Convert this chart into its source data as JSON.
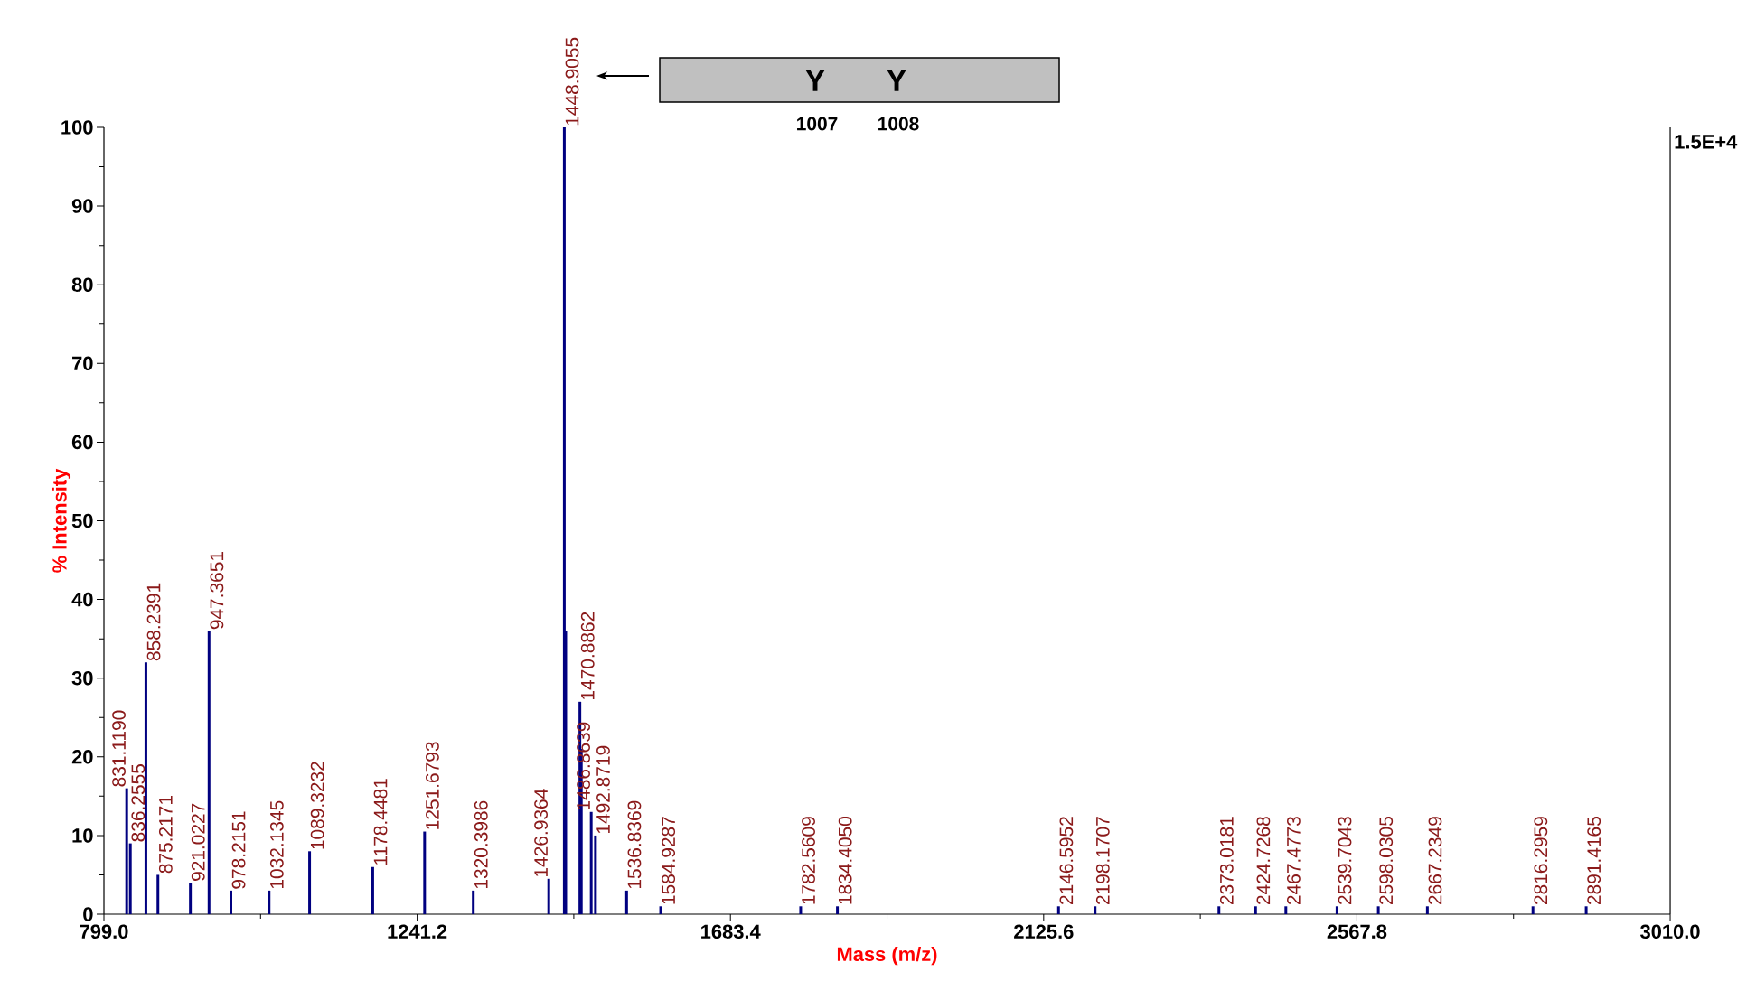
{
  "chart_data": {
    "type": "bar",
    "xlabel": "Mass (m/z)",
    "ylabel": "% Intensity",
    "x": [
      831.119,
      836.2555,
      858.2391,
      875.2171,
      921.0227,
      947.3651,
      978.2151,
      1032.1345,
      1089.3232,
      1178.4481,
      1251.6793,
      1320.3986,
      1426.9364,
      1448.9055,
      1450.9,
      1470.8862,
      1472.9,
      1486.8639,
      1492.8719,
      1536.8369,
      1584.9287,
      1782.5609,
      1834.405,
      2146.5952,
      2198.1707,
      2373.0181,
      2424.7268,
      2467.4773,
      2539.7043,
      2598.0305,
      2667.2349,
      2816.2959,
      2891.4165
    ],
    "values": [
      16,
      9,
      32,
      5,
      4,
      36,
      3,
      3,
      8,
      6,
      10.5,
      3,
      4.5,
      100,
      36,
      27,
      21,
      13,
      10,
      3,
      1,
      1,
      1,
      1,
      1,
      1,
      1,
      1,
      1,
      1,
      1,
      1,
      1
    ],
    "color": "#000080",
    "xlim": [
      799.0,
      3010.0
    ],
    "xticks": [
      {
        "value": 799.0,
        "label": "799.0"
      },
      1241.2,
      1683.4,
      2125.6,
      2567.8,
      {
        "value": 3010.0,
        "label": "3010.0"
      }
    ],
    "ylim": [
      0,
      100
    ],
    "yticks": [
      0,
      10,
      20,
      30,
      40,
      50,
      60,
      70,
      80,
      90,
      100
    ],
    "annotations": [
      {
        "text": "831.1190",
        "x": 831.119,
        "y": 16
      },
      {
        "text": "836.2555",
        "x": 836.2555,
        "y": 9
      },
      {
        "text": "858.2391",
        "x": 858.2391,
        "y": 32
      },
      {
        "text": "875.2171",
        "x": 875.2171,
        "y": 5
      },
      {
        "text": "921.0227",
        "x": 921.0227,
        "y": 4
      },
      {
        "text": "947.3651",
        "x": 947.3651,
        "y": 36
      },
      {
        "text": "978.2151",
        "x": 978.2151,
        "y": 3
      },
      {
        "text": "1032.1345",
        "x": 1032.1345,
        "y": 3
      },
      {
        "text": "1089.3232",
        "x": 1089.3232,
        "y": 8
      },
      {
        "text": "1178.4481",
        "x": 1178.4481,
        "y": 6
      },
      {
        "text": "1251.6793",
        "x": 1251.6793,
        "y": 10.5
      },
      {
        "text": "1320.3986",
        "x": 1320.3986,
        "y": 3
      },
      {
        "text": "1426.9364",
        "x": 1426.9364,
        "y": 4.5
      },
      {
        "text": "1448.9055",
        "x": 1448.9055,
        "y": 100
      },
      {
        "text": "1470.8862",
        "x": 1470.8862,
        "y": 27
      },
      {
        "text": "1486.8639",
        "x": 1486.8639,
        "y": 13
      },
      {
        "text": "1492.8719",
        "x": 1492.8719,
        "y": 10
      },
      {
        "text": "1536.8369",
        "x": 1536.8369,
        "y": 3
      },
      {
        "text": "1584.9287",
        "x": 1584.9287,
        "y": 1
      },
      {
        "text": "1782.5609",
        "x": 1782.5609,
        "y": 1
      },
      {
        "text": "1834.4050",
        "x": 1834.405,
        "y": 1
      },
      {
        "text": "2146.5952",
        "x": 2146.5952,
        "y": 1
      },
      {
        "text": "2198.1707",
        "x": 2198.1707,
        "y": 1
      },
      {
        "text": "2373.0181",
        "x": 2373.0181,
        "y": 1
      },
      {
        "text": "2424.7268",
        "x": 2424.7268,
        "y": 1
      },
      {
        "text": "2467.4773",
        "x": 2467.4773,
        "y": 1
      },
      {
        "text": "2539.7043",
        "x": 2539.7043,
        "y": 1
      },
      {
        "text": "2598.0305",
        "x": 2598.0305,
        "y": 1
      },
      {
        "text": "2667.2349",
        "x": 2667.2349,
        "y": 1
      },
      {
        "text": "2816.2959",
        "x": 2816.2959,
        "y": 1
      },
      {
        "text": "2891.4165",
        "x": 2891.4165,
        "y": 1
      },
      "1.5E+4",
      "Y",
      "Y",
      "1007",
      "1008"
    ]
  }
}
